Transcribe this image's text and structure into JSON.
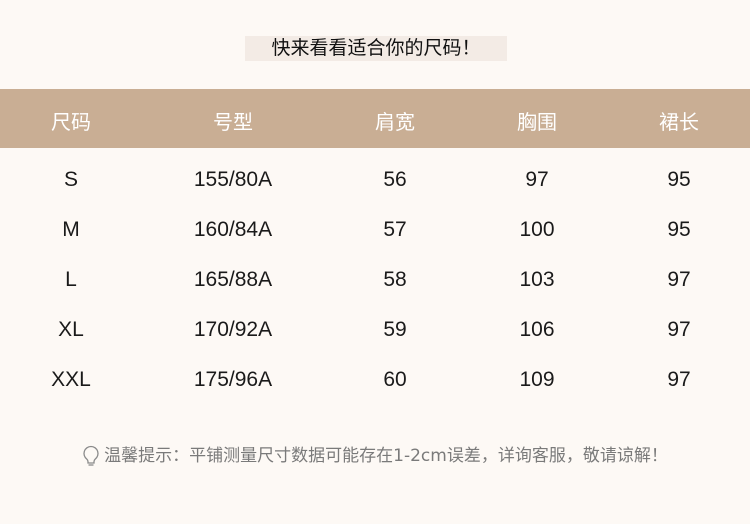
{
  "title": "快来看看适合你的尺码！",
  "colors": {
    "header_bg": "#c9ae94",
    "page_bg": "#fdf9f5"
  },
  "table": {
    "headers": [
      "尺码",
      "号型",
      "肩宽",
      "胸围",
      "裙长"
    ],
    "rows": [
      [
        "S",
        "155/80A",
        "56",
        "97",
        "95"
      ],
      [
        "M",
        "160/84A",
        "57",
        "100",
        "95"
      ],
      [
        "L",
        "165/88A",
        "58",
        "103",
        "97"
      ],
      [
        "XL",
        "170/92A",
        "59",
        "106",
        "97"
      ],
      [
        "XXL",
        "175/96A",
        "60",
        "109",
        "97"
      ]
    ]
  },
  "footer": {
    "icon": "lightbulb-icon",
    "text": "温馨提示：平铺测量尺寸数据可能存在1-2cm误差，详询客服，敬请谅解！"
  }
}
